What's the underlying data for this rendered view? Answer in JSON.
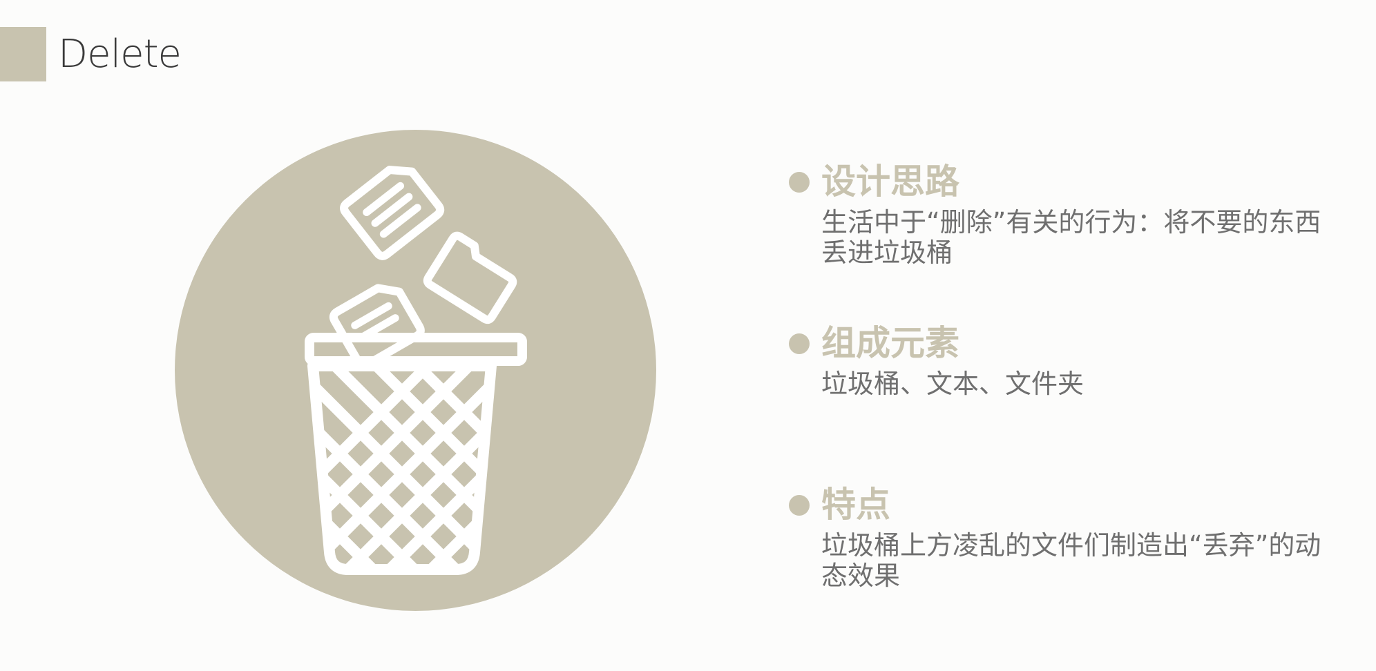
{
  "header": {
    "title": "Delete",
    "accent_color": "#c8c3af"
  },
  "illustration": {
    "icon": "trash-can-with-files-icon",
    "circle_color": "#c8c3af",
    "line_color": "#ffffff"
  },
  "sections": [
    {
      "title": "设计思路",
      "body": "生活中于“删除”有关的行为：将不要的东西丢进垃圾桶"
    },
    {
      "title": "组成元素",
      "body": "垃圾桶、文本、文件夹"
    },
    {
      "title": "特点",
      "body": "垃圾桶上方凌乱的文件们制造出“丢弃”的动态效果"
    }
  ],
  "colors": {
    "heading": "#c8c3af",
    "body_text": "#6f6f6f",
    "title_text": "#3a3a3a",
    "background": "#fcfcfb"
  }
}
